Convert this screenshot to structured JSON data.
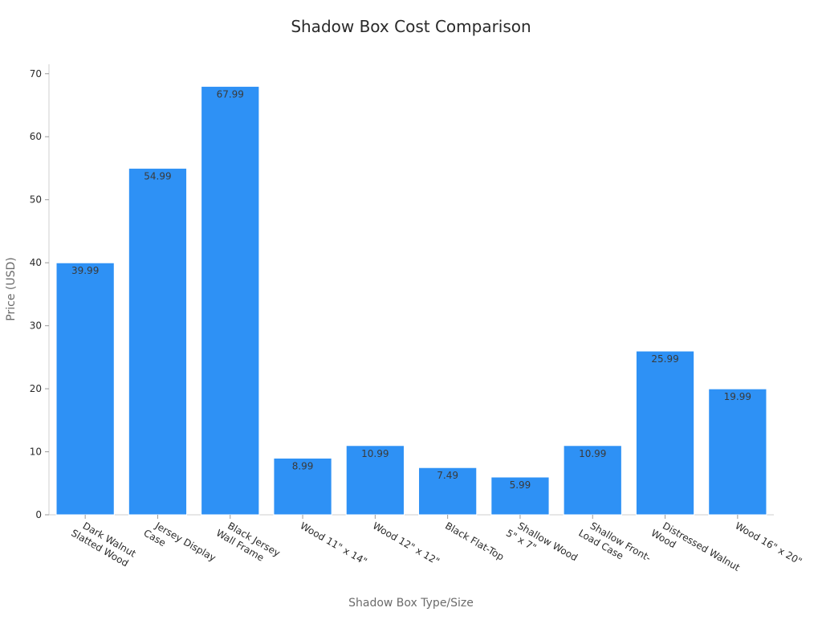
{
  "chart_data": {
    "type": "bar",
    "title": "Shadow Box Cost Comparison",
    "xlabel": "Shadow Box Type/Size",
    "ylabel": "Price (USD)",
    "categories": [
      [
        "Dark Walnut",
        "Slatted Wood"
      ],
      [
        "Jersey Display",
        "Case"
      ],
      [
        "Black Jersey",
        "Wall Frame"
      ],
      [
        "Wood 11\" x 14\""
      ],
      [
        "Wood 12\" x 12\""
      ],
      [
        "Black Flat-Top"
      ],
      [
        "Shallow Wood",
        "5\" x 7\""
      ],
      [
        "Shallow Front-",
        "Load Case"
      ],
      [
        "Distressed Walnut",
        "Wood"
      ],
      [
        "Wood 16\" x 20\""
      ]
    ],
    "values": [
      39.99,
      54.99,
      67.99,
      8.99,
      10.99,
      7.49,
      5.99,
      10.99,
      25.99,
      19.99
    ],
    "data_labels": [
      "39.99",
      "54.99",
      "67.99",
      "8.99",
      "10.99",
      "7.49",
      "5.99",
      "10.99",
      "25.99",
      "19.99"
    ],
    "ylim": [
      0,
      71.5
    ],
    "yticks": [
      0,
      10,
      20,
      30,
      40,
      50,
      60,
      70
    ],
    "ytick_labels": [
      "0",
      "10",
      "20",
      "30",
      "40",
      "50",
      "60",
      "70"
    ],
    "bar_color": "#2e91f5",
    "grid": false,
    "legend": "none"
  }
}
